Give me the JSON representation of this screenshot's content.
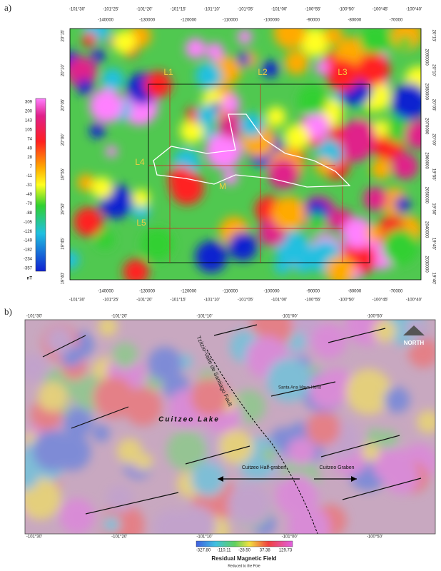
{
  "panel_a": {
    "label": "a)",
    "top_x_labels": [
      "-140000",
      "-130000",
      "-120000",
      "-110000",
      "-100000",
      "-90000",
      "-80000",
      "-70000"
    ],
    "top_deg_labels": [
      "-101°30'",
      "-101°25'",
      "-101°20'",
      "-101°15'",
      "-101°10'",
      "-101°05'",
      "-101°00'",
      "-100°55'",
      "-100°50'",
      "-100°45'",
      "-100°40'"
    ],
    "bottom_x_labels": [
      "-140000",
      "-130000",
      "-120000",
      "-110000",
      "-100000",
      "-90000",
      "-80000",
      "-70000"
    ],
    "bottom_deg_labels": [
      "-101°30'",
      "-101°25'",
      "-101°20'",
      "-101°15'",
      "-101°10'",
      "-101°05'",
      "-101°00'",
      "-100°55'",
      "-100°50'",
      "-100°45'",
      "-100°40'"
    ],
    "left_lat_labels": [
      "20°15'",
      "20°10'",
      "20°05'",
      "20°00'",
      "19°55'",
      "19°50'",
      "19°45'",
      "19°40'"
    ],
    "right_lat_labels": [
      "20°15'",
      "20°10'",
      "20°05'",
      "20°00'",
      "19°55'",
      "19°50'",
      "19°45'",
      "19°40'"
    ],
    "right_northing_labels": [
      "2090000",
      "2080000",
      "2070000",
      "2060000",
      "2050000",
      "2040000",
      "2030000"
    ],
    "colorbar_labels": [
      "309",
      "200",
      "143",
      "105",
      "74",
      "49",
      "28",
      "7",
      "-11",
      "-31",
      "-49",
      "-70",
      "-88",
      "-105",
      "-126",
      "-149",
      "-182",
      "-234",
      "-357"
    ],
    "colorbar_unit": "nT",
    "map_labels": [
      "L1",
      "L2",
      "L3",
      "L4",
      "L5",
      "M"
    ]
  },
  "panel_b": {
    "label": "b)",
    "top_deg_labels": [
      "-101°30'",
      "-101°20'",
      "-101°10'",
      "-101°00'",
      "-100°50'"
    ],
    "bottom_deg_labels": [
      "-101°30'",
      "-101°20'",
      "-101°10'",
      "-101°00'",
      "-100°50'"
    ],
    "annotations": {
      "fault": "Tzitzio-Valle de Santiago Fault",
      "horst": "Santa Ana Maya Horst",
      "lake": "Cuitzeo Lake",
      "half_graben": "Cuitzeo Half-graben",
      "graben": "Cuitzeo Graben",
      "north": "NORTH"
    },
    "colorbar_labels": [
      "-327.80",
      "-110.11",
      "-28.50",
      "37.38",
      "129.73"
    ],
    "colorbar_title": "Residual Magnetic Field",
    "colorbar_subtitle": "Reduced to the Pole"
  }
}
